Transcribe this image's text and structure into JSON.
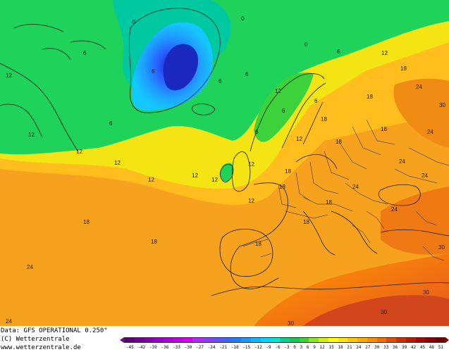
{
  "footer": {
    "model": "Data: GFS OPERATIONAL 0.250°",
    "copyright": "(C) Wetterzentrale",
    "url": "www.wetterzentrale.de"
  },
  "scale": {
    "ticks": [
      "-45",
      "-42",
      "-39",
      "-36",
      "-33",
      "-30",
      "-27",
      "-24",
      "-21",
      "-18",
      "-15",
      "-12",
      "-9",
      "-6",
      "-3",
      "0",
      "3",
      "6",
      "9",
      "12",
      "15",
      "18",
      "21",
      "24",
      "27",
      "30",
      "33",
      "36",
      "39",
      "42",
      "45",
      "48",
      "51"
    ],
    "colors": [
      "#5a0078",
      "#6e0090",
      "#8200a8",
      "#9600c0",
      "#aa00d4",
      "#be00e4",
      "#d000f0",
      "#b428ff",
      "#8c3cff",
      "#6450ff",
      "#3c64ff",
      "#2878ff",
      "#1e96ff",
      "#14b4ff",
      "#0ad2ff",
      "#00e6d2",
      "#00d28c",
      "#14c850",
      "#3cd23c",
      "#8ce628",
      "#d2f014",
      "#ffff00",
      "#ffe400",
      "#ffc800",
      "#ffaa00",
      "#ff8c00",
      "#f06e00",
      "#dc5000",
      "#c83200",
      "#b41e00",
      "#a00a00",
      "#8c0000",
      "#6e0000"
    ]
  },
  "map": {
    "contour_labels": [
      "0",
      "0",
      "0",
      "12",
      "6",
      "6",
      "6",
      "12",
      "6",
      "12",
      "6",
      "6",
      "12",
      "12",
      "18",
      "24",
      "30",
      "12",
      "6",
      "12",
      "6",
      "12",
      "12",
      "6",
      "18",
      "18",
      "18",
      "18",
      "24",
      "24",
      "18",
      "12",
      "18",
      "12",
      "12",
      "18",
      "18",
      "24",
      "18",
      "24",
      "18",
      "18",
      "24",
      "24",
      "30",
      "30",
      "24",
      "30",
      "30"
    ]
  }
}
